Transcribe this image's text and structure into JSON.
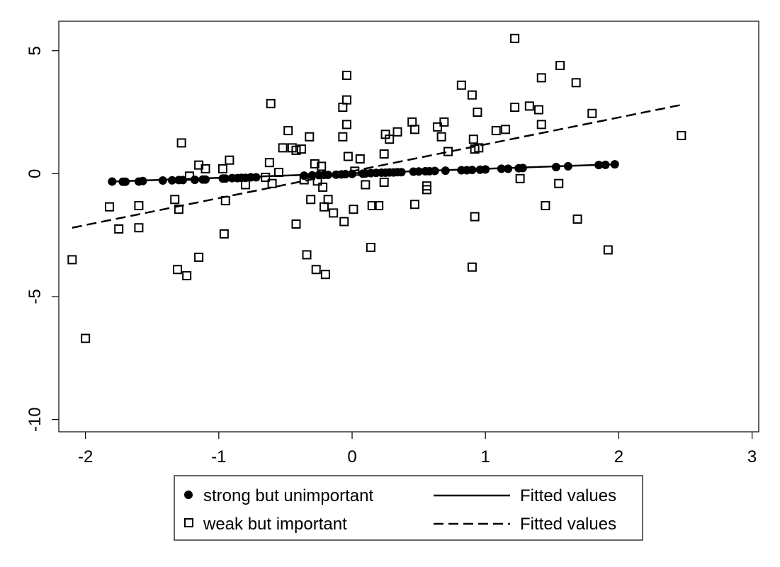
{
  "chart_data": {
    "type": "scatter",
    "title": "",
    "xlabel": "",
    "ylabel": "",
    "xlim": [
      -2.2,
      3.05
    ],
    "ylim": [
      -10.5,
      6.2
    ],
    "x_ticks": [
      {
        "value": -2,
        "label": "-2"
      },
      {
        "value": -1,
        "label": "-1"
      },
      {
        "value": 0,
        "label": "0"
      },
      {
        "value": 1,
        "label": "1"
      },
      {
        "value": 2,
        "label": "2"
      },
      {
        "value": 3,
        "label": "3"
      }
    ],
    "y_ticks": [
      {
        "value": 5,
        "label": "5"
      },
      {
        "value": 0,
        "label": "0"
      },
      {
        "value": -5,
        "label": "-5"
      },
      {
        "value": -10,
        "label": "-10"
      }
    ],
    "grid": false,
    "legend_position": "bottom",
    "series": [
      {
        "name": "strong but unimportant",
        "kind": "scatter",
        "marker": "filled-circle",
        "color": "#000000",
        "points": [
          [
            -1.8,
            -0.32
          ],
          [
            -1.72,
            -0.33
          ],
          [
            -1.7,
            -0.33
          ],
          [
            -1.6,
            -0.32
          ],
          [
            -1.57,
            -0.3
          ],
          [
            -1.42,
            -0.28
          ],
          [
            -1.35,
            -0.27
          ],
          [
            -1.3,
            -0.26
          ],
          [
            -1.27,
            -0.26
          ],
          [
            -1.18,
            -0.25
          ],
          [
            -1.12,
            -0.24
          ],
          [
            -1.1,
            -0.24
          ],
          [
            -0.97,
            -0.2
          ],
          [
            -0.95,
            -0.2
          ],
          [
            -0.9,
            -0.18
          ],
          [
            -0.86,
            -0.18
          ],
          [
            -0.83,
            -0.17
          ],
          [
            -0.8,
            -0.17
          ],
          [
            -0.76,
            -0.15
          ],
          [
            -0.72,
            -0.15
          ],
          [
            -0.36,
            -0.08
          ],
          [
            -0.3,
            -0.07
          ],
          [
            -0.25,
            -0.06
          ],
          [
            -0.21,
            -0.05
          ],
          [
            -0.18,
            -0.05
          ],
          [
            -0.12,
            -0.04
          ],
          [
            -0.08,
            -0.03
          ],
          [
            -0.05,
            -0.02
          ],
          [
            0.0,
            -0.01
          ],
          [
            0.08,
            0.0
          ],
          [
            0.1,
            0.01
          ],
          [
            0.14,
            0.02
          ],
          [
            0.18,
            0.03
          ],
          [
            0.22,
            0.04
          ],
          [
            0.25,
            0.04
          ],
          [
            0.28,
            0.05
          ],
          [
            0.31,
            0.05
          ],
          [
            0.34,
            0.06
          ],
          [
            0.37,
            0.06
          ],
          [
            0.46,
            0.08
          ],
          [
            0.5,
            0.09
          ],
          [
            0.55,
            0.1
          ],
          [
            0.58,
            0.1
          ],
          [
            0.62,
            0.11
          ],
          [
            0.7,
            0.12
          ],
          [
            0.82,
            0.14
          ],
          [
            0.86,
            0.14
          ],
          [
            0.9,
            0.15
          ],
          [
            0.96,
            0.16
          ],
          [
            1.0,
            0.17
          ],
          [
            1.12,
            0.2
          ],
          [
            1.17,
            0.2
          ],
          [
            1.25,
            0.22
          ],
          [
            1.28,
            0.23
          ],
          [
            1.53,
            0.27
          ],
          [
            1.62,
            0.3
          ],
          [
            1.85,
            0.35
          ],
          [
            1.9,
            0.36
          ],
          [
            1.97,
            0.38
          ]
        ]
      },
      {
        "name": "weak but important",
        "kind": "scatter",
        "marker": "hollow-square",
        "color": "#000000",
        "points": [
          [
            -2.1,
            -3.5
          ],
          [
            -2.0,
            -6.7
          ],
          [
            -1.82,
            -1.35
          ],
          [
            -1.75,
            -2.25
          ],
          [
            -1.6,
            -2.2
          ],
          [
            -1.6,
            -1.3
          ],
          [
            -1.33,
            -1.05
          ],
          [
            -1.31,
            -3.9
          ],
          [
            -1.3,
            -1.45
          ],
          [
            -1.28,
            1.25
          ],
          [
            -1.24,
            -4.15
          ],
          [
            -1.22,
            -0.1
          ],
          [
            -1.15,
            -3.4
          ],
          [
            -1.15,
            0.35
          ],
          [
            -1.1,
            0.2
          ],
          [
            -0.96,
            -2.45
          ],
          [
            -0.95,
            -1.1
          ],
          [
            -0.92,
            0.55
          ],
          [
            -0.97,
            0.2
          ],
          [
            -0.8,
            -0.45
          ],
          [
            -0.65,
            -0.15
          ],
          [
            -0.62,
            0.45
          ],
          [
            -0.61,
            2.85
          ],
          [
            -0.6,
            -0.4
          ],
          [
            -0.55,
            0.05
          ],
          [
            -0.52,
            1.05
          ],
          [
            -0.48,
            1.75
          ],
          [
            -0.45,
            1.05
          ],
          [
            -0.42,
            0.95
          ],
          [
            -0.42,
            -2.05
          ],
          [
            -0.38,
            1.0
          ],
          [
            -0.36,
            -0.25
          ],
          [
            -0.34,
            -3.3
          ],
          [
            -0.32,
            1.5
          ],
          [
            -0.31,
            -1.05
          ],
          [
            -0.28,
            0.4
          ],
          [
            -0.27,
            -3.9
          ],
          [
            -0.26,
            -0.3
          ],
          [
            -0.23,
            0.3
          ],
          [
            -0.22,
            -0.55
          ],
          [
            -0.21,
            -1.35
          ],
          [
            -0.2,
            -4.1
          ],
          [
            -0.18,
            -1.05
          ],
          [
            -0.14,
            -1.6
          ],
          [
            -0.07,
            2.7
          ],
          [
            -0.07,
            1.5
          ],
          [
            -0.06,
            -1.95
          ],
          [
            -0.04,
            2.0
          ],
          [
            -0.04,
            3.0
          ],
          [
            -0.04,
            4.0
          ],
          [
            -0.03,
            0.7
          ],
          [
            0.01,
            -1.45
          ],
          [
            0.02,
            0.1
          ],
          [
            0.06,
            0.6
          ],
          [
            0.1,
            -0.45
          ],
          [
            0.14,
            -3.0
          ],
          [
            0.15,
            -1.3
          ],
          [
            0.2,
            -1.3
          ],
          [
            0.24,
            0.8
          ],
          [
            0.24,
            -0.35
          ],
          [
            0.25,
            1.6
          ],
          [
            0.28,
            1.4
          ],
          [
            0.34,
            1.7
          ],
          [
            0.45,
            2.1
          ],
          [
            0.47,
            1.8
          ],
          [
            0.47,
            -1.25
          ],
          [
            0.56,
            -0.5
          ],
          [
            0.56,
            -0.65
          ],
          [
            0.64,
            1.9
          ],
          [
            0.67,
            1.5
          ],
          [
            0.69,
            2.1
          ],
          [
            0.72,
            0.9
          ],
          [
            0.82,
            3.6
          ],
          [
            0.9,
            3.2
          ],
          [
            0.9,
            -3.8
          ],
          [
            0.91,
            1.4
          ],
          [
            0.92,
            1.0
          ],
          [
            0.92,
            -1.75
          ],
          [
            0.94,
            2.5
          ],
          [
            0.95,
            1.05
          ],
          [
            1.08,
            1.75
          ],
          [
            1.15,
            1.8
          ],
          [
            1.22,
            2.7
          ],
          [
            1.22,
            5.5
          ],
          [
            1.26,
            -0.2
          ],
          [
            1.33,
            2.75
          ],
          [
            1.4,
            2.6
          ],
          [
            1.42,
            3.9
          ],
          [
            1.42,
            2.0
          ],
          [
            1.45,
            -1.3
          ],
          [
            1.55,
            -0.4
          ],
          [
            1.56,
            4.4
          ],
          [
            1.68,
            3.7
          ],
          [
            1.69,
            -1.85
          ],
          [
            1.8,
            2.45
          ],
          [
            1.92,
            -3.1
          ],
          [
            2.47,
            1.55
          ]
        ]
      },
      {
        "name": "Fitted values",
        "kind": "line",
        "dash": "solid",
        "color": "#000000",
        "points": [
          [
            -1.8,
            -0.32
          ],
          [
            1.97,
            0.38
          ]
        ]
      },
      {
        "name": "Fitted values",
        "kind": "line",
        "dash": "dashed",
        "color": "#000000",
        "points": [
          [
            -2.1,
            -2.2
          ],
          [
            2.47,
            2.8
          ]
        ]
      }
    ]
  }
}
